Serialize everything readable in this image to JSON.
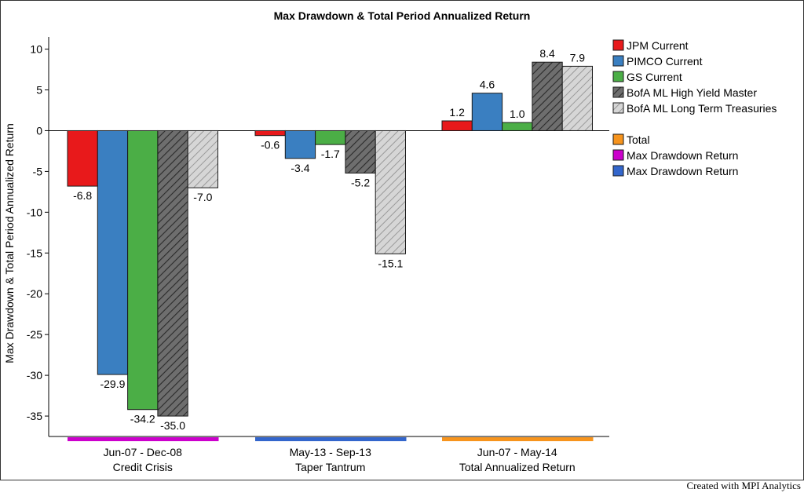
{
  "credit": "Created with MPI Analytics",
  "colors": {
    "jpm": "#e8191b",
    "pimco": "#3a7fc1",
    "gs": "#4bae46",
    "bofa_hy": "#6e6e6e",
    "bofa_lt": "#cfcfcf",
    "total": "#f7941d",
    "max_dd_1": "#cc00cc",
    "max_dd_2": "#3366cc"
  },
  "chart_data": {
    "type": "bar",
    "title": "Max Drawdown & Total Period Annualized Return",
    "ylabel": "Max Drawdown & Total Period Annualized Return",
    "xlabel": "",
    "ylim": [
      -37.5,
      11.5
    ],
    "yticks": [
      10,
      5,
      0,
      -5,
      -10,
      -15,
      -20,
      -25,
      -30,
      -35
    ],
    "grid": false,
    "legend_position": "right",
    "categories": [
      {
        "line1": "Jun-07 - Dec-08",
        "line2": "Credit Crisis",
        "band_color": "#cc00cc"
      },
      {
        "line1": "May-13 - Sep-13",
        "line2": "Taper Tantrum",
        "band_color": "#3366cc"
      },
      {
        "line1": "Jun-07 - May-14",
        "line2": "Total Annualized Return",
        "band_color": "#f7941d"
      }
    ],
    "series": [
      {
        "name": "JPM Current",
        "color": "#e8191b",
        "hatch": false,
        "values": [
          -6.8,
          -0.6,
          1.2
        ]
      },
      {
        "name": "PIMCO Current",
        "color": "#3a7fc1",
        "hatch": false,
        "values": [
          -29.9,
          -3.4,
          4.6
        ]
      },
      {
        "name": "GS Current",
        "color": "#4bae46",
        "hatch": false,
        "values": [
          -34.2,
          -1.7,
          1.0
        ]
      },
      {
        "name": "BofA ML High Yield Master",
        "color": "#6e6e6e",
        "hatch": true,
        "values": [
          -35.0,
          -5.2,
          8.4
        ]
      },
      {
        "name": "BofA ML Long Term Treasuries",
        "color": "#cfcfcf",
        "hatch": true,
        "values": [
          -7.0,
          -15.1,
          7.9
        ]
      }
    ],
    "legend_extra": [
      {
        "name": "Total",
        "color": "#f7941d"
      },
      {
        "name": "Max Drawdown Return",
        "color": "#cc00cc"
      },
      {
        "name": "Max Drawdown Return",
        "color": "#3366cc"
      }
    ]
  }
}
